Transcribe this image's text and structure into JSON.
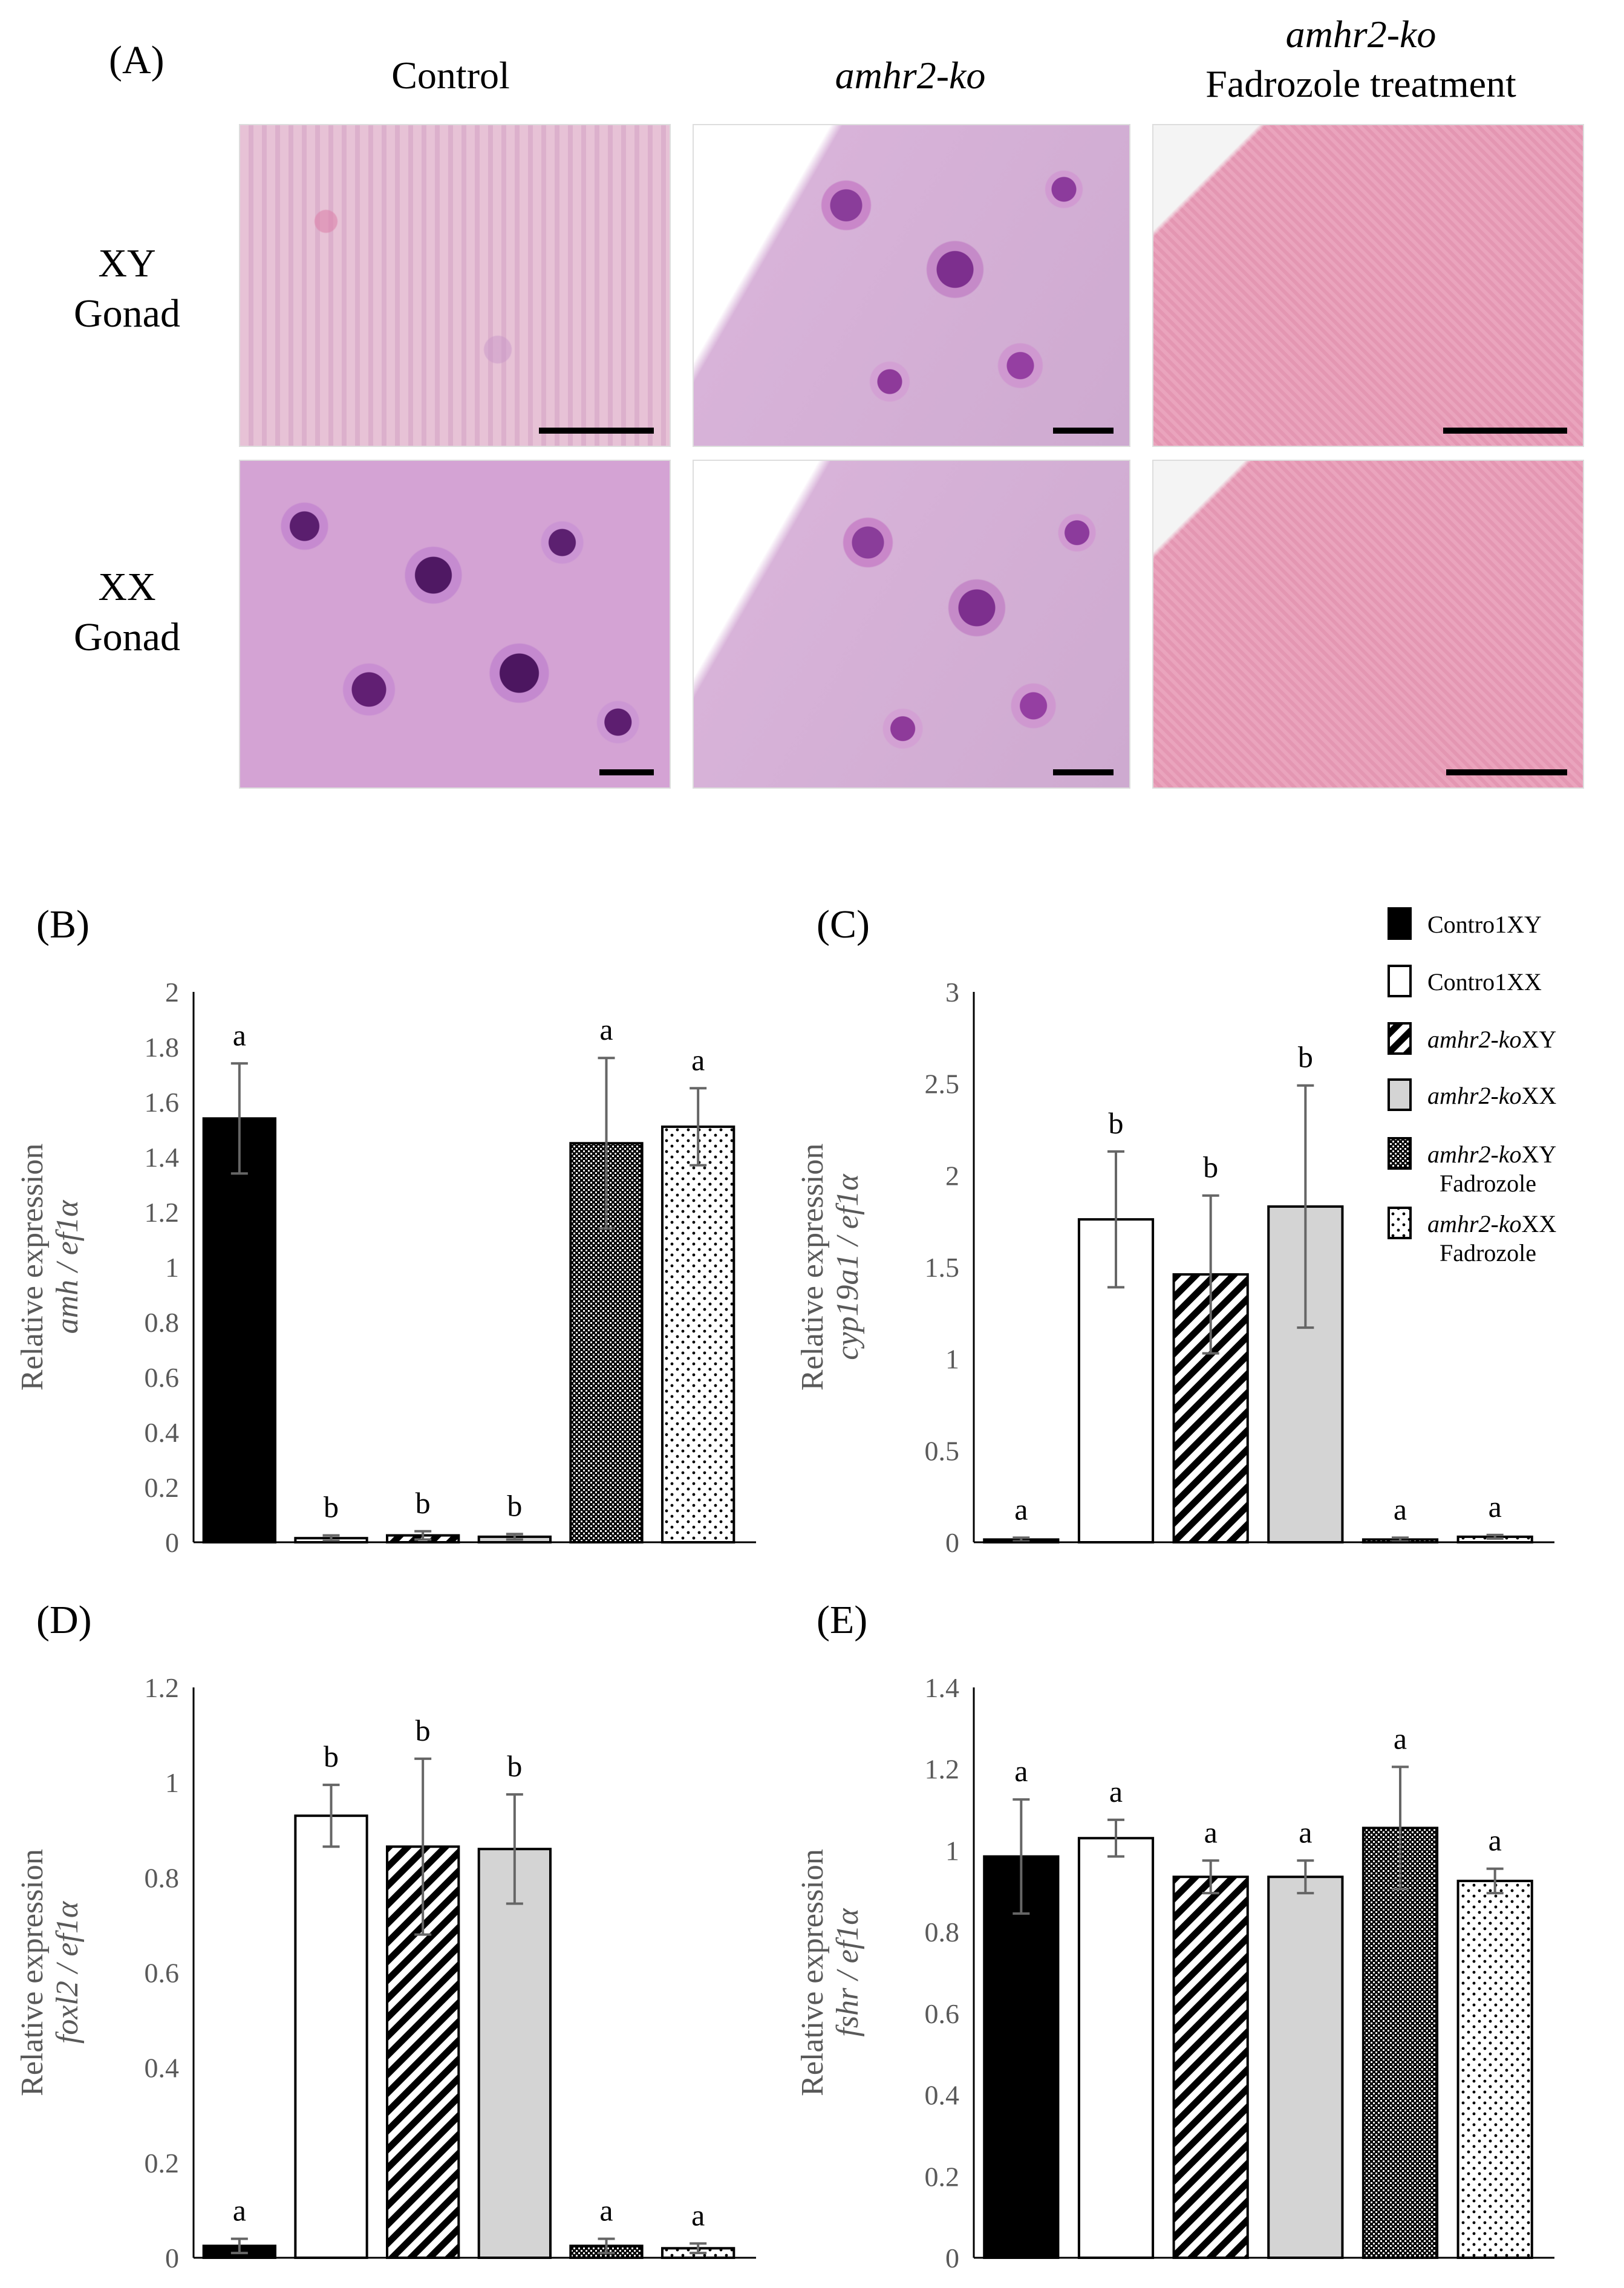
{
  "panel_A": {
    "label": "(A)",
    "columns": [
      {
        "title": "Control",
        "italic": false
      },
      {
        "title": "amhr2-ko",
        "italic": true
      },
      {
        "title_line1": "amhr2-ko",
        "title_line2": "Fadrozole treatment"
      }
    ],
    "rows": [
      {
        "line1": "XY",
        "line2": "Gonad"
      },
      {
        "line1": "XX",
        "line2": "Gonad"
      }
    ]
  },
  "legend": {
    "items": [
      {
        "gene": "",
        "label": "Contro1XY",
        "fill": "black"
      },
      {
        "gene": "",
        "label": "Contro1XX",
        "fill": "white"
      },
      {
        "gene": "amhr2-ko",
        "label": "XY",
        "fill": "stripes"
      },
      {
        "gene": "amhr2-ko",
        "label": "XX",
        "fill": "grey"
      },
      {
        "gene": "amhr2-ko",
        "label": "XY",
        "sub": "Fadrozole",
        "fill": "checker"
      },
      {
        "gene": "amhr2-ko",
        "label": "XX",
        "sub": "Fadrozole",
        "fill": "dots"
      }
    ]
  },
  "chart_data": [
    {
      "panel": "(B)",
      "type": "bar",
      "ylabel_line1": "Relative expression",
      "ylabel_line2": "amh / ef1α",
      "ylim": [
        0,
        2
      ],
      "yticks": [
        "0",
        "0.2",
        "0.4",
        "0.6",
        "0.8",
        "1",
        "1.2",
        "1.4",
        "1.6",
        "1.8",
        "2"
      ],
      "categories": [
        "Contro1XY",
        "Contro1XX",
        "amhr2-ko XY",
        "amhr2-ko XX",
        "amhr2-ko XY Fadrozole",
        "amhr2-ko XX Fadrozole"
      ],
      "values": [
        1.54,
        0.015,
        0.025,
        0.02,
        1.45,
        1.51
      ],
      "errors": [
        0.2,
        0.01,
        0.015,
        0.01,
        0.31,
        0.14
      ],
      "letters": [
        "a",
        "b",
        "b",
        "b",
        "a",
        "a"
      ]
    },
    {
      "panel": "(C)",
      "type": "bar",
      "ylabel_line1": "Relative expression",
      "ylabel_line2": "cyp19a1 / ef1α",
      "ylim": [
        0,
        3
      ],
      "yticks": [
        "0",
        "0.5",
        "1",
        "1.5",
        "2",
        "2.5",
        "3"
      ],
      "categories": [
        "Contro1XY",
        "Contro1XX",
        "amhr2-ko XY",
        "amhr2-ko XX",
        "amhr2-ko XY Fadrozole",
        "amhr2-ko XX Fadrozole"
      ],
      "values": [
        0.015,
        1.76,
        1.46,
        1.83,
        0.015,
        0.03
      ],
      "errors": [
        0.01,
        0.37,
        0.43,
        0.66,
        0.01,
        0.01
      ],
      "letters": [
        "a",
        "b",
        "b",
        "b",
        "a",
        "a"
      ]
    },
    {
      "panel": "(D)",
      "type": "bar",
      "ylabel_line1": "Relative expression",
      "ylabel_line2": "foxl2 / ef1α",
      "ylim": [
        0,
        1.2
      ],
      "yticks": [
        "0",
        "0.2",
        "0.4",
        "0.6",
        "0.8",
        "1",
        "1.2"
      ],
      "categories": [
        "Contro1XY",
        "Contro1XX",
        "amhr2-ko XY",
        "amhr2-ko XX",
        "amhr2-ko XY Fadrozole",
        "amhr2-ko XX Fadrozole"
      ],
      "values": [
        0.025,
        0.93,
        0.865,
        0.86,
        0.025,
        0.02
      ],
      "errors": [
        0.015,
        0.065,
        0.185,
        0.115,
        0.015,
        0.01
      ],
      "letters": [
        "a",
        "b",
        "b",
        "b",
        "a",
        "a"
      ]
    },
    {
      "panel": "(E)",
      "type": "bar",
      "ylabel_line1": "Relative expression",
      "ylabel_line2": "fshr / ef1α",
      "ylim": [
        0,
        1.4
      ],
      "yticks": [
        "0",
        "0.2",
        "0.4",
        "0.6",
        "0.8",
        "1",
        "1.2",
        "1.4"
      ],
      "categories": [
        "Contro1XY",
        "Contro1XX",
        "amhr2-ko XY",
        "amhr2-ko XX",
        "amhr2-ko XY Fadrozole",
        "amhr2-ko XX Fadrozole"
      ],
      "values": [
        0.985,
        1.03,
        0.935,
        0.935,
        1.055,
        0.925
      ],
      "errors": [
        0.14,
        0.045,
        0.04,
        0.04,
        0.15,
        0.03
      ],
      "letters": [
        "a",
        "a",
        "a",
        "a",
        "a",
        "a"
      ]
    }
  ]
}
